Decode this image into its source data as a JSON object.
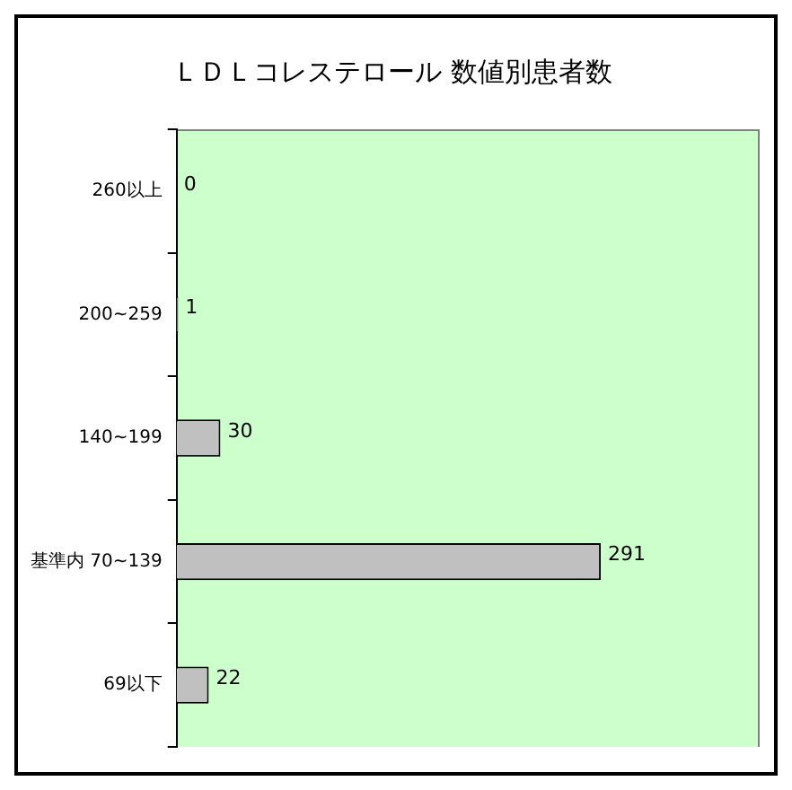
{
  "chart_data": {
    "type": "bar",
    "orientation": "horizontal",
    "title": "ＬＤＬコレステロール 数値別患者数",
    "categories": [
      "260以上",
      "200~259",
      "140~199",
      "基準内 70~139",
      "69以下"
    ],
    "values": [
      0,
      1,
      30,
      291,
      22
    ],
    "color": "#c0c0c0",
    "xlim": [
      0,
      400
    ],
    "tick_labels": "y",
    "data_labels": true,
    "grid": false,
    "legend": false
  }
}
